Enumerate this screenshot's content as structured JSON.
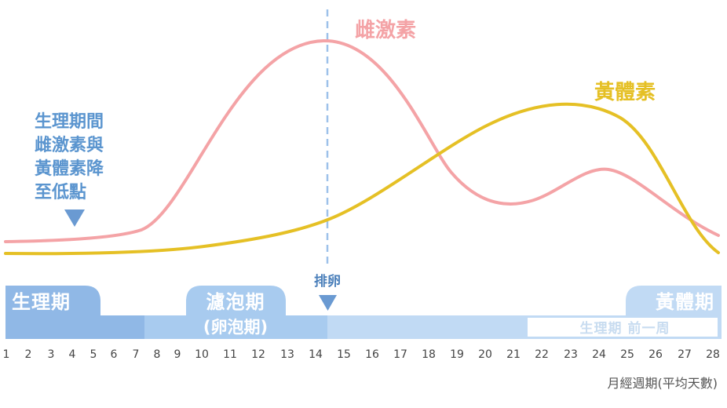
{
  "curves": {
    "estrogen": {
      "label": "雌激素",
      "color": "#f4a3a6"
    },
    "progesterone": {
      "label": "黃體素",
      "color": "#e5c025"
    }
  },
  "note_lines": [
    "生理期間",
    "雌激素與",
    "黃體素降",
    "至低點"
  ],
  "ovulation": {
    "label": "排卵",
    "day": 14.5
  },
  "phases": {
    "menstrual": "生理期",
    "follicular": "濾泡期",
    "follicular_sub": "(卵泡期)",
    "luteal": "黃體期",
    "premenstrual": "生理期 前一周"
  },
  "colors": {
    "menstrual": "#90b8e6",
    "follicular": "#a8cbef",
    "luteal": "#c1daf4",
    "guide": "#9dc1ea"
  },
  "days": [
    "1",
    "2",
    "3",
    "4",
    "5",
    "6",
    "7",
    "8",
    "9",
    "10",
    "11",
    "12",
    "13",
    "14",
    "15",
    "16",
    "17",
    "18",
    "19",
    "20",
    "21",
    "22",
    "23",
    "24",
    "25",
    "26",
    "27",
    "28"
  ],
  "axis_title": "月經週期(平均天數)"
}
